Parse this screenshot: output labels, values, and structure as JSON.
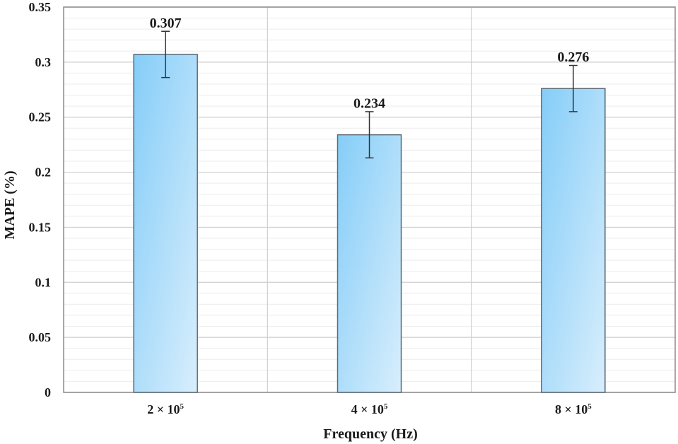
{
  "chart_data": {
    "type": "bar",
    "title": "",
    "xlabel": "Frequency (Hz)",
    "ylabel": "MAPE (%)",
    "ylim": [
      0,
      0.35
    ],
    "yticks": [
      0,
      0.05,
      0.1,
      0.15,
      0.2,
      0.25,
      0.3,
      0.35
    ],
    "ytick_labels": [
      "0",
      "0.05",
      "0.1",
      "0.15",
      "0.2",
      "0.25",
      "0.3",
      "0.35"
    ],
    "minor_step": 0.01,
    "categories": [
      {
        "base": "2 × 10",
        "exp": "5"
      },
      {
        "base": "4 × 10",
        "exp": "5"
      },
      {
        "base": "8 × 10",
        "exp": "5"
      }
    ],
    "values": [
      0.307,
      0.234,
      0.276
    ],
    "value_labels": [
      "0.307",
      "0.234",
      "0.276"
    ],
    "errors": [
      0.021,
      0.021,
      0.021
    ],
    "grid": true,
    "colors": {
      "bar_top": "#85cdf8",
      "bar_bottom": "#d8eefc",
      "bar_edge": "#5a6a75",
      "grid_major": "#cfcfcf",
      "grid_minor": "#ececec",
      "axis": "#8a8a8a"
    }
  }
}
